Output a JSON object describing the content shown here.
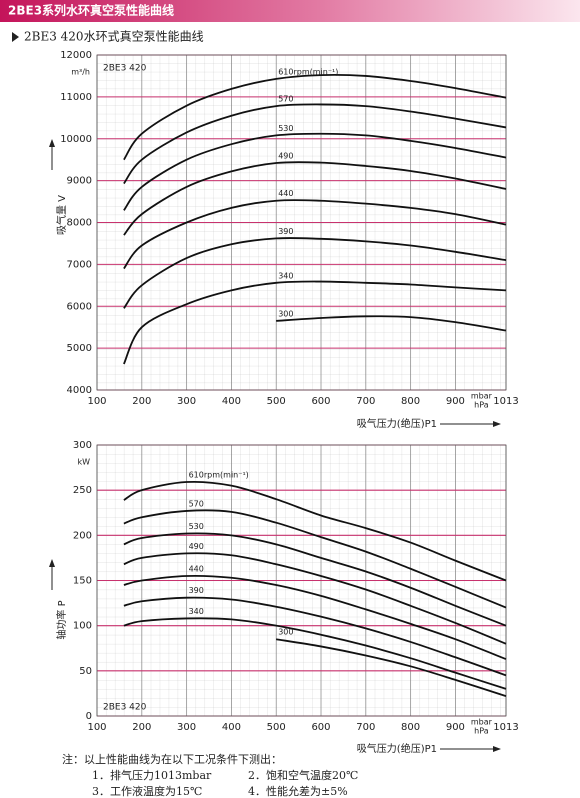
{
  "header": {
    "title": "2BE3系列水环真空泵性能曲线",
    "subtitle": "2BE3 420水环式真空泵性能曲线"
  },
  "chart_data": [
    {
      "type": "line",
      "title": "2BE3 420",
      "y_unit": "m³/h",
      "ylabel": "吸气量 V",
      "xlabel": "吸气压力(绝压)P1",
      "x_unit": [
        "mbar",
        "hPa"
      ],
      "x": [
        160,
        200,
        300,
        400,
        500,
        600,
        700,
        800,
        900,
        1013
      ],
      "xlim": [
        100,
        1013
      ],
      "xticks": [
        100,
        200,
        300,
        400,
        500,
        600,
        700,
        800,
        900,
        1013
      ],
      "ylim": [
        4000,
        12000
      ],
      "yticks": [
        4000,
        5000,
        6000,
        7000,
        8000,
        9000,
        10000,
        11000,
        12000
      ],
      "grid": true,
      "grid_color": "#c8326e",
      "series": [
        {
          "name": "610rpm(min⁻¹)",
          "color": "#111111",
          "values": [
            9500,
            10120,
            10790,
            11190,
            11430,
            11520,
            11500,
            11380,
            11210,
            10980
          ]
        },
        {
          "name": "570",
          "color": "#111111",
          "values": [
            8930,
            9500,
            10150,
            10550,
            10780,
            10820,
            10780,
            10650,
            10480,
            10270
          ]
        },
        {
          "name": "530",
          "color": "#111111",
          "values": [
            8290,
            8850,
            9500,
            9870,
            10080,
            10120,
            10080,
            9950,
            9780,
            9550
          ]
        },
        {
          "name": "490",
          "color": "#111111",
          "values": [
            7700,
            8200,
            8850,
            9220,
            9420,
            9430,
            9350,
            9230,
            9050,
            8800
          ]
        },
        {
          "name": "440",
          "color": "#111111",
          "values": [
            6900,
            7450,
            8000,
            8350,
            8520,
            8520,
            8450,
            8350,
            8200,
            7950
          ]
        },
        {
          "name": "390",
          "color": "#111111",
          "values": [
            5950,
            6500,
            7150,
            7480,
            7620,
            7610,
            7550,
            7450,
            7300,
            7100
          ]
        },
        {
          "name": "340",
          "color": "#111111",
          "values": [
            4620,
            5500,
            6050,
            6380,
            6560,
            6590,
            6560,
            6520,
            6450,
            6380
          ]
        },
        {
          "name": "300",
          "color": "#111111",
          "values": [
            null,
            null,
            null,
            null,
            5650,
            5720,
            5760,
            5740,
            5620,
            5420
          ]
        }
      ]
    },
    {
      "type": "line",
      "title": "2BE3 420",
      "y_unit": "kW",
      "ylabel": "轴功率 P",
      "xlabel": "吸气压力(绝压)P1",
      "x_unit": [
        "mbar",
        "hPa"
      ],
      "x": [
        160,
        200,
        300,
        400,
        500,
        600,
        700,
        800,
        900,
        1013
      ],
      "xlim": [
        100,
        1013
      ],
      "xticks": [
        100,
        200,
        300,
        400,
        500,
        600,
        700,
        800,
        900,
        1013
      ],
      "ylim": [
        0,
        300
      ],
      "yticks": [
        0,
        50,
        100,
        150,
        200,
        250,
        300
      ],
      "grid": true,
      "grid_color": "#c8326e",
      "series": [
        {
          "name": "610rpm(min⁻¹)",
          "color": "#111111",
          "values": [
            239,
            250,
            259,
            255,
            240,
            222,
            208,
            192,
            172,
            150
          ]
        },
        {
          "name": "570",
          "color": "#111111",
          "values": [
            213,
            220,
            227,
            226,
            214,
            198,
            182,
            163,
            143,
            120
          ]
        },
        {
          "name": "530",
          "color": "#111111",
          "values": [
            190,
            197,
            202,
            200,
            190,
            175,
            160,
            142,
            122,
            100
          ]
        },
        {
          "name": "490",
          "color": "#111111",
          "values": [
            168,
            175,
            180,
            178,
            168,
            155,
            140,
            122,
            103,
            80
          ]
        },
        {
          "name": "440",
          "color": "#111111",
          "values": [
            145,
            150,
            155,
            153,
            145,
            133,
            118,
            102,
            85,
            63
          ]
        },
        {
          "name": "390",
          "color": "#111111",
          "values": [
            122,
            127,
            131,
            129,
            121,
            110,
            97,
            82,
            65,
            45
          ]
        },
        {
          "name": "340",
          "color": "#111111",
          "values": [
            100,
            105,
            108,
            107,
            100,
            90,
            78,
            64,
            48,
            30
          ]
        },
        {
          "name": "300",
          "color": "#111111",
          "values": [
            null,
            null,
            null,
            null,
            85,
            77,
            67,
            55,
            40,
            22
          ]
        }
      ]
    }
  ],
  "notes": {
    "title": "注：以上性能曲线为在以下工况条件下测出：",
    "items": [
      "1．排气压力1013mbar",
      "2．饱和空气温度20℃",
      "3．工作液温度为15℃",
      "4．性能允差为±5%"
    ]
  }
}
